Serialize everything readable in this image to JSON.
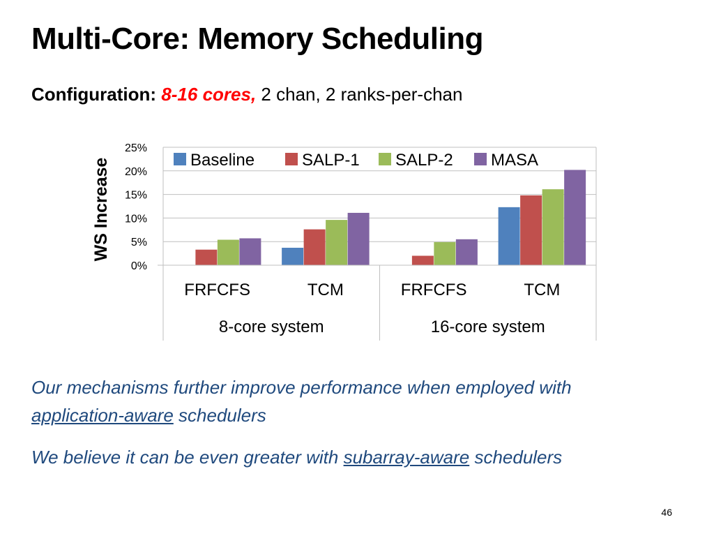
{
  "slide": {
    "title": "Multi-Core: Memory Scheduling",
    "config_label": "Configuration:",
    "config_highlight": "8-16 cores,",
    "config_rest": "2 chan, 2 ranks-per-chan",
    "note1_pre": "Our mechanisms further improve performance when employed with",
    "note1_link": "application-aware",
    "note1_post": "schedulers",
    "note2_pre": "We believe it can be even greater with",
    "note2_link": "subarray-aware",
    "note2_post": "schedulers",
    "page_number": "46"
  },
  "chart_data": {
    "type": "bar",
    "title": "",
    "ylabel": "WS Increase",
    "xlabel": "",
    "ylim": [
      0,
      25
    ],
    "yticks": [
      0,
      5,
      10,
      15,
      20,
      25
    ],
    "ytick_labels": [
      "0%",
      "5%",
      "10%",
      "15%",
      "20%",
      "25%"
    ],
    "categories": [
      "FRFCFS",
      "TCM",
      "FRFCFS",
      "TCM"
    ],
    "groups": [
      {
        "label": "8-core system",
        "span": [
          0,
          1
        ]
      },
      {
        "label": "16-core system",
        "span": [
          2,
          3
        ]
      }
    ],
    "series": [
      {
        "name": "Baseline",
        "color": "#4f81bd",
        "values": [
          0,
          3.7,
          0,
          12.3
        ]
      },
      {
        "name": "SALP-1",
        "color": "#c0504d",
        "values": [
          3.3,
          7.6,
          2.0,
          14.8
        ]
      },
      {
        "name": "SALP-2",
        "color": "#9bbb59",
        "values": [
          5.4,
          9.6,
          4.9,
          16.1
        ]
      },
      {
        "name": "MASA",
        "color": "#8064a2",
        "values": [
          5.7,
          11.1,
          5.5,
          20.2
        ]
      }
    ],
    "legend": "top",
    "grid": true
  }
}
